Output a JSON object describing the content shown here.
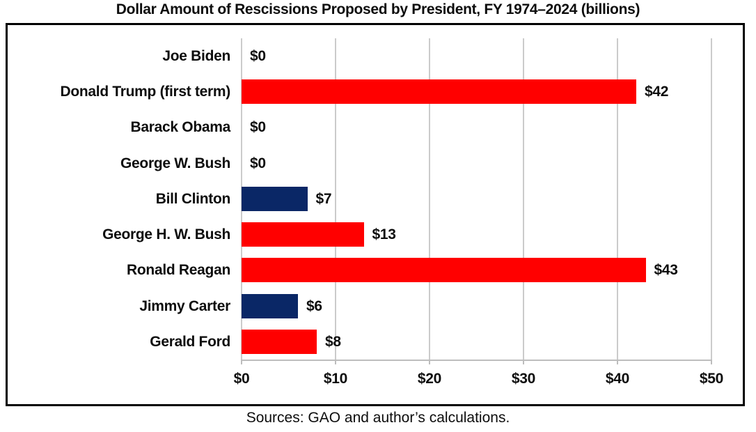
{
  "title": "Dollar Amount of Rescissions Proposed by President, FY 1974–2024 (billions)",
  "source_note": "Sources: GAO and author’s calculations.",
  "colors": {
    "republican_red": "#FF0000",
    "democrat_navy": "#0A2766",
    "gridline": "#CBCBCB",
    "axis_line": "#BDBDBD",
    "frame_border": "#000000",
    "text": "#0D0D0D"
  },
  "chart_data": {
    "type": "bar",
    "orientation": "horizontal",
    "title": "Dollar Amount of Rescissions Proposed by President, FY 1974–2024 (billions)",
    "categories": [
      "Joe Biden",
      "Donald Trump (first term)",
      "Barack Obama",
      "George W. Bush",
      "Bill Clinton",
      "George H. W. Bush",
      "Ronald Reagan",
      "Jimmy Carter",
      "Gerald Ford"
    ],
    "values": [
      0,
      42,
      0,
      0,
      7,
      13,
      43,
      6,
      8
    ],
    "value_labels": [
      "$0",
      "$42",
      "$0",
      "$0",
      "$7",
      "$13",
      "$43",
      "$6",
      "$8"
    ],
    "bar_color_keys": [
      "none",
      "republican_red",
      "none",
      "none",
      "democrat_navy",
      "republican_red",
      "republican_red",
      "democrat_navy",
      "republican_red"
    ],
    "xlabel": "",
    "ylabel": "",
    "xlim": [
      0,
      50
    ],
    "x_tick_values": [
      0,
      10,
      20,
      30,
      40,
      50
    ],
    "x_tick_labels": [
      "$0",
      "$10",
      "$20",
      "$30",
      "$40",
      "$50"
    ],
    "grid": true,
    "legend_position": "none"
  }
}
